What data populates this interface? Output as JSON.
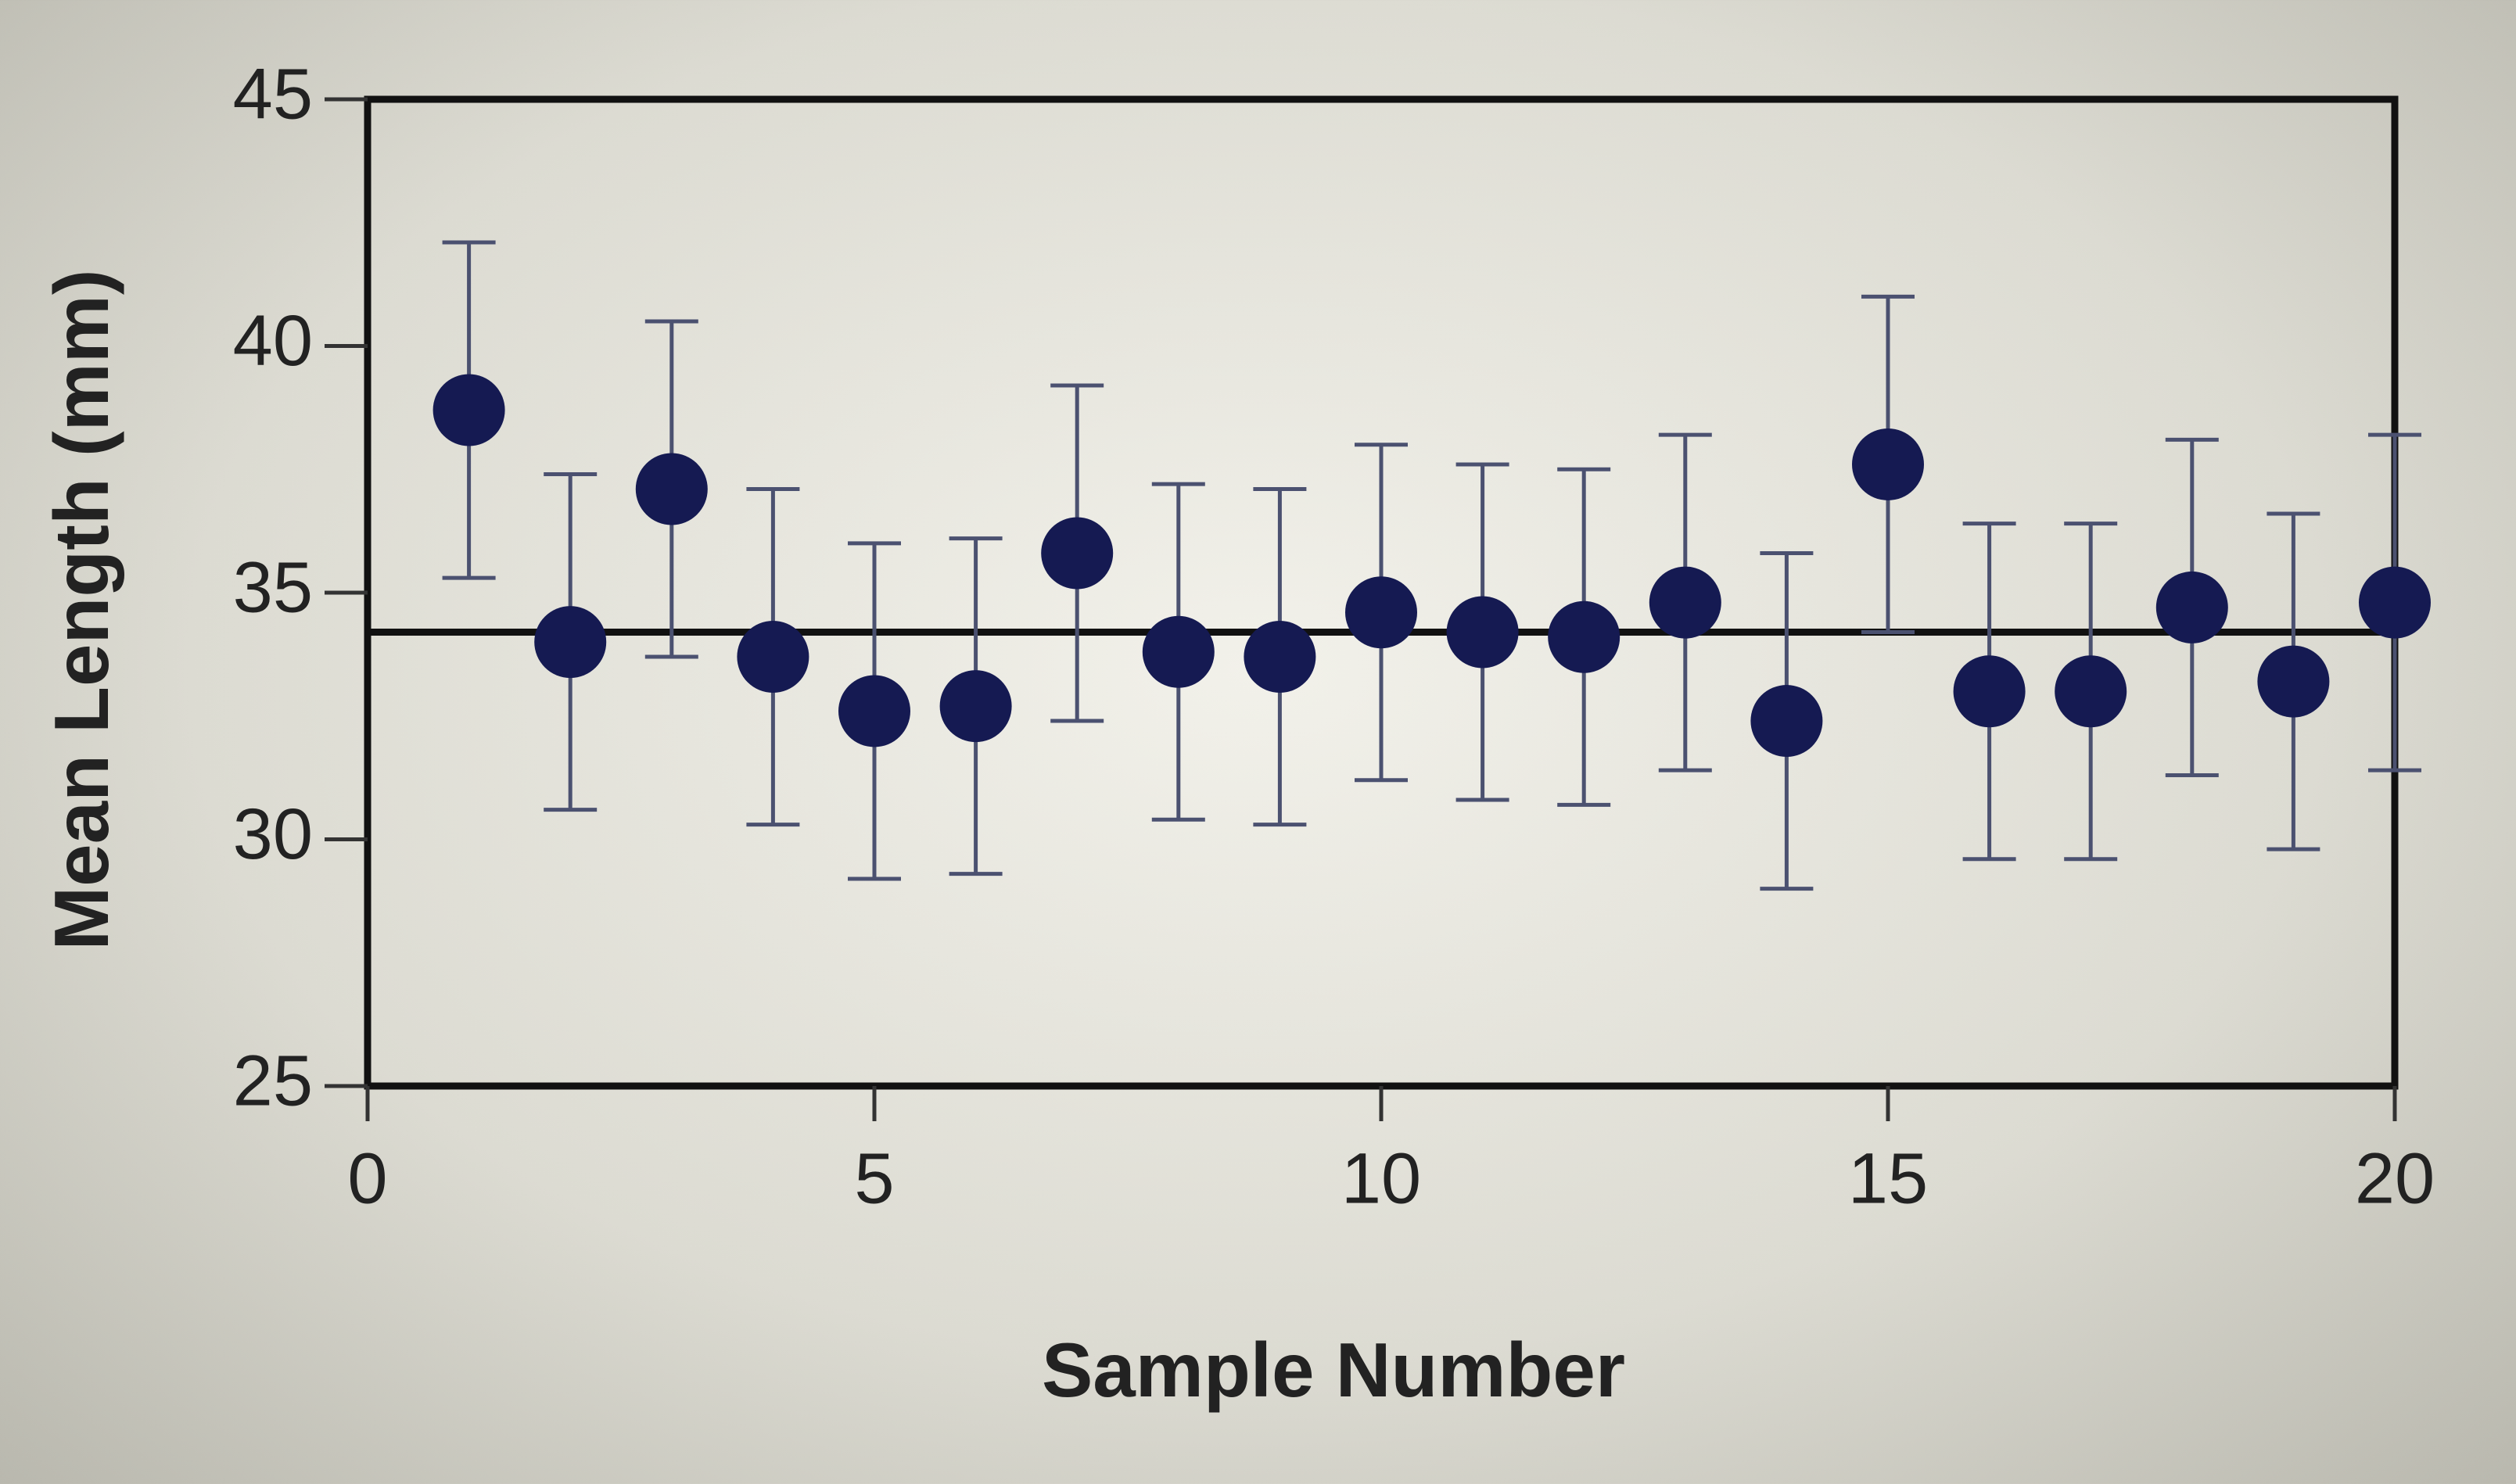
{
  "chart_data": {
    "type": "scatter",
    "x_label": "Sample Number",
    "y_label": "Mean Length (mm)",
    "x": [
      1,
      2,
      3,
      4,
      5,
      6,
      7,
      8,
      9,
      10,
      11,
      12,
      13,
      14,
      15,
      16,
      17,
      18,
      19,
      20
    ],
    "values": [
      38.7,
      34.0,
      37.1,
      33.7,
      32.6,
      32.7,
      35.8,
      33.8,
      33.7,
      34.6,
      34.2,
      34.1,
      34.8,
      32.4,
      37.6,
      33.0,
      33.0,
      34.7,
      33.2,
      34.8
    ],
    "errors": [
      3.4,
      3.4,
      3.4,
      3.4,
      3.4,
      3.4,
      3.4,
      3.4,
      3.4,
      3.4,
      3.4,
      3.4,
      3.4,
      3.4,
      3.4,
      3.4,
      3.4,
      3.4,
      3.4,
      3.4
    ],
    "color": "#151a52",
    "error_color": "#4b5170",
    "reference_line": 34.2,
    "xlim": [
      0,
      20
    ],
    "xticks": [
      0,
      5,
      10,
      15,
      20
    ],
    "ylim": [
      25,
      45
    ],
    "yticks": [
      25,
      30,
      35,
      40,
      45
    ]
  }
}
